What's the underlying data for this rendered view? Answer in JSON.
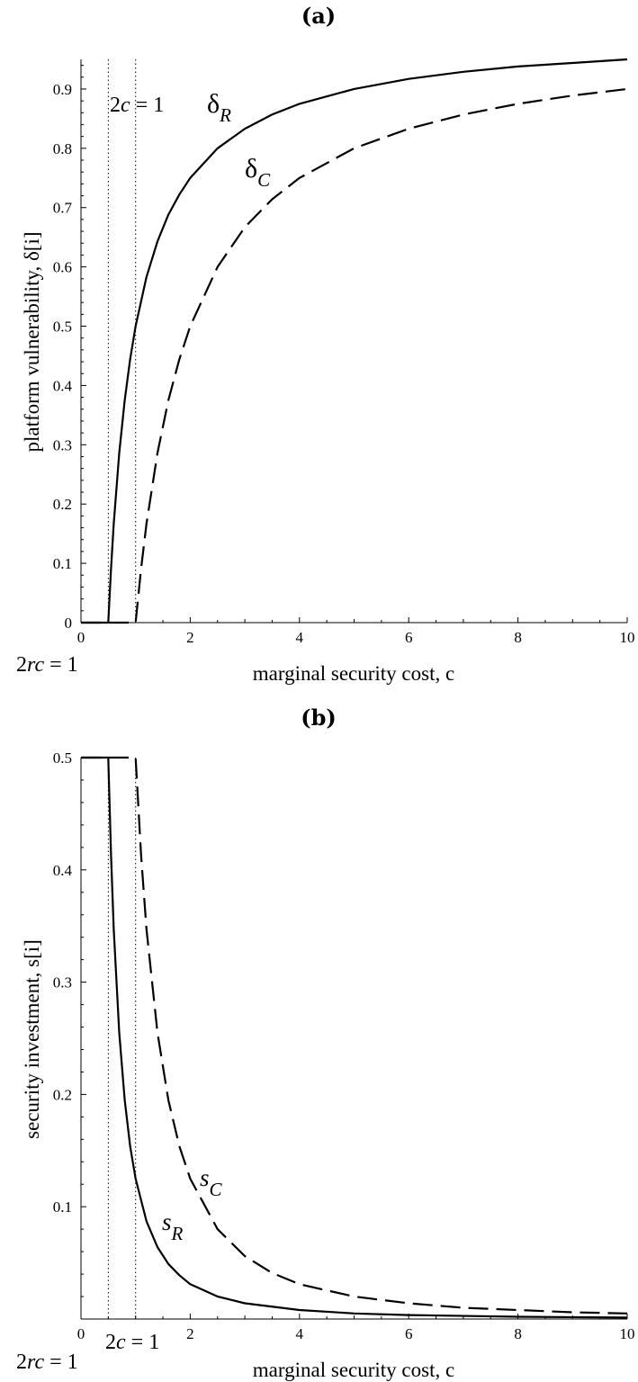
{
  "chart_data": [
    {
      "type": "line",
      "panel_label": "(a)",
      "xlabel": "marginal security cost, c",
      "ylabel": "platform vulnerability, δ[i]",
      "xlim": [
        0,
        10
      ],
      "ylim": [
        0,
        0.95
      ],
      "x_ticks": [
        0,
        2,
        4,
        6,
        8,
        10
      ],
      "x_tick_labels": [
        "0",
        "2",
        "4",
        "6",
        "8",
        "10"
      ],
      "y_ticks": [
        0,
        0.1,
        0.2,
        0.3,
        0.4,
        0.5,
        0.6,
        0.7,
        0.8,
        0.9
      ],
      "y_tick_labels": [
        "0",
        "0.1",
        "0.2",
        "0.3",
        "0.4",
        "0.5",
        "0.6",
        "0.7",
        "0.8",
        "0.9"
      ],
      "grid": false,
      "vlines": [
        {
          "x": 0.5,
          "label_main": "2",
          "label_it": "rc",
          "label_tail": " = 1"
        },
        {
          "x": 1.0,
          "label_main": "2",
          "label_it": "c",
          "label_tail": " = 1"
        }
      ],
      "series": [
        {
          "name": "δR",
          "label_base": "δ",
          "label_sub": "R",
          "style": "solid",
          "x": [
            0,
            0.5,
            0.55,
            0.6,
            0.7,
            0.8,
            0.9,
            1.0,
            1.2,
            1.4,
            1.6,
            1.8,
            2.0,
            2.5,
            3.0,
            3.5,
            4.0,
            5.0,
            6.0,
            7.0,
            8.0,
            9.0,
            10.0
          ],
          "y": [
            0,
            0,
            0.091,
            0.167,
            0.286,
            0.375,
            0.444,
            0.5,
            0.583,
            0.643,
            0.688,
            0.722,
            0.75,
            0.8,
            0.833,
            0.857,
            0.875,
            0.9,
            0.917,
            0.929,
            0.938,
            0.944,
            0.95
          ]
        },
        {
          "name": "δC",
          "label_base": "δ",
          "label_sub": "C",
          "style": "dashed",
          "x": [
            0,
            1.0,
            1.1,
            1.2,
            1.4,
            1.6,
            1.8,
            2.0,
            2.5,
            3.0,
            3.5,
            4.0,
            5.0,
            6.0,
            7.0,
            8.0,
            9.0,
            10.0
          ],
          "y": [
            0,
            0,
            0.091,
            0.167,
            0.286,
            0.375,
            0.444,
            0.5,
            0.6,
            0.667,
            0.714,
            0.75,
            0.8,
            0.833,
            0.857,
            0.875,
            0.889,
            0.9
          ]
        }
      ]
    },
    {
      "type": "line",
      "panel_label": "(b)",
      "xlabel": "marginal security cost, c",
      "ylabel": "security investment, s[i]",
      "xlim": [
        0,
        10
      ],
      "ylim": [
        0,
        0.5
      ],
      "x_ticks": [
        0,
        2,
        4,
        6,
        8,
        10
      ],
      "x_tick_labels": [
        "0",
        "2",
        "4",
        "6",
        "8",
        "10"
      ],
      "y_ticks": [
        0.1,
        0.2,
        0.3,
        0.4,
        0.5
      ],
      "y_tick_labels": [
        "0.1",
        "0.2",
        "0.3",
        "0.4",
        "0.5"
      ],
      "grid": false,
      "vlines": [
        {
          "x": 0.5,
          "label_main": "2",
          "label_it": "rc",
          "label_tail": " = 1"
        },
        {
          "x": 1.0,
          "label_main": "2",
          "label_it": "c",
          "label_tail": " = 1"
        }
      ],
      "series": [
        {
          "name": "sR",
          "label_base": "s",
          "label_sub": "R",
          "style": "solid",
          "x": [
            0,
            0.5,
            0.55,
            0.6,
            0.7,
            0.8,
            0.9,
            1.0,
            1.2,
            1.4,
            1.6,
            1.8,
            2.0,
            2.5,
            3.0,
            4.0,
            5.0,
            6.0,
            8.0,
            10.0
          ],
          "y": [
            0.5,
            0.5,
            0.413,
            0.347,
            0.255,
            0.195,
            0.154,
            0.125,
            0.087,
            0.064,
            0.049,
            0.039,
            0.031,
            0.02,
            0.014,
            0.008,
            0.005,
            0.0035,
            0.002,
            0.0013
          ]
        },
        {
          "name": "sC",
          "label_base": "s",
          "label_sub": "C",
          "style": "dashed",
          "x": [
            0,
            1.0,
            1.1,
            1.2,
            1.4,
            1.6,
            1.8,
            2.0,
            2.5,
            3.0,
            3.5,
            4.0,
            5.0,
            6.0,
            7.0,
            8.0,
            9.0,
            10.0
          ],
          "y": [
            0.5,
            0.5,
            0.413,
            0.347,
            0.255,
            0.195,
            0.154,
            0.125,
            0.08,
            0.056,
            0.041,
            0.031,
            0.02,
            0.014,
            0.01,
            0.008,
            0.006,
            0.005
          ]
        }
      ]
    }
  ]
}
